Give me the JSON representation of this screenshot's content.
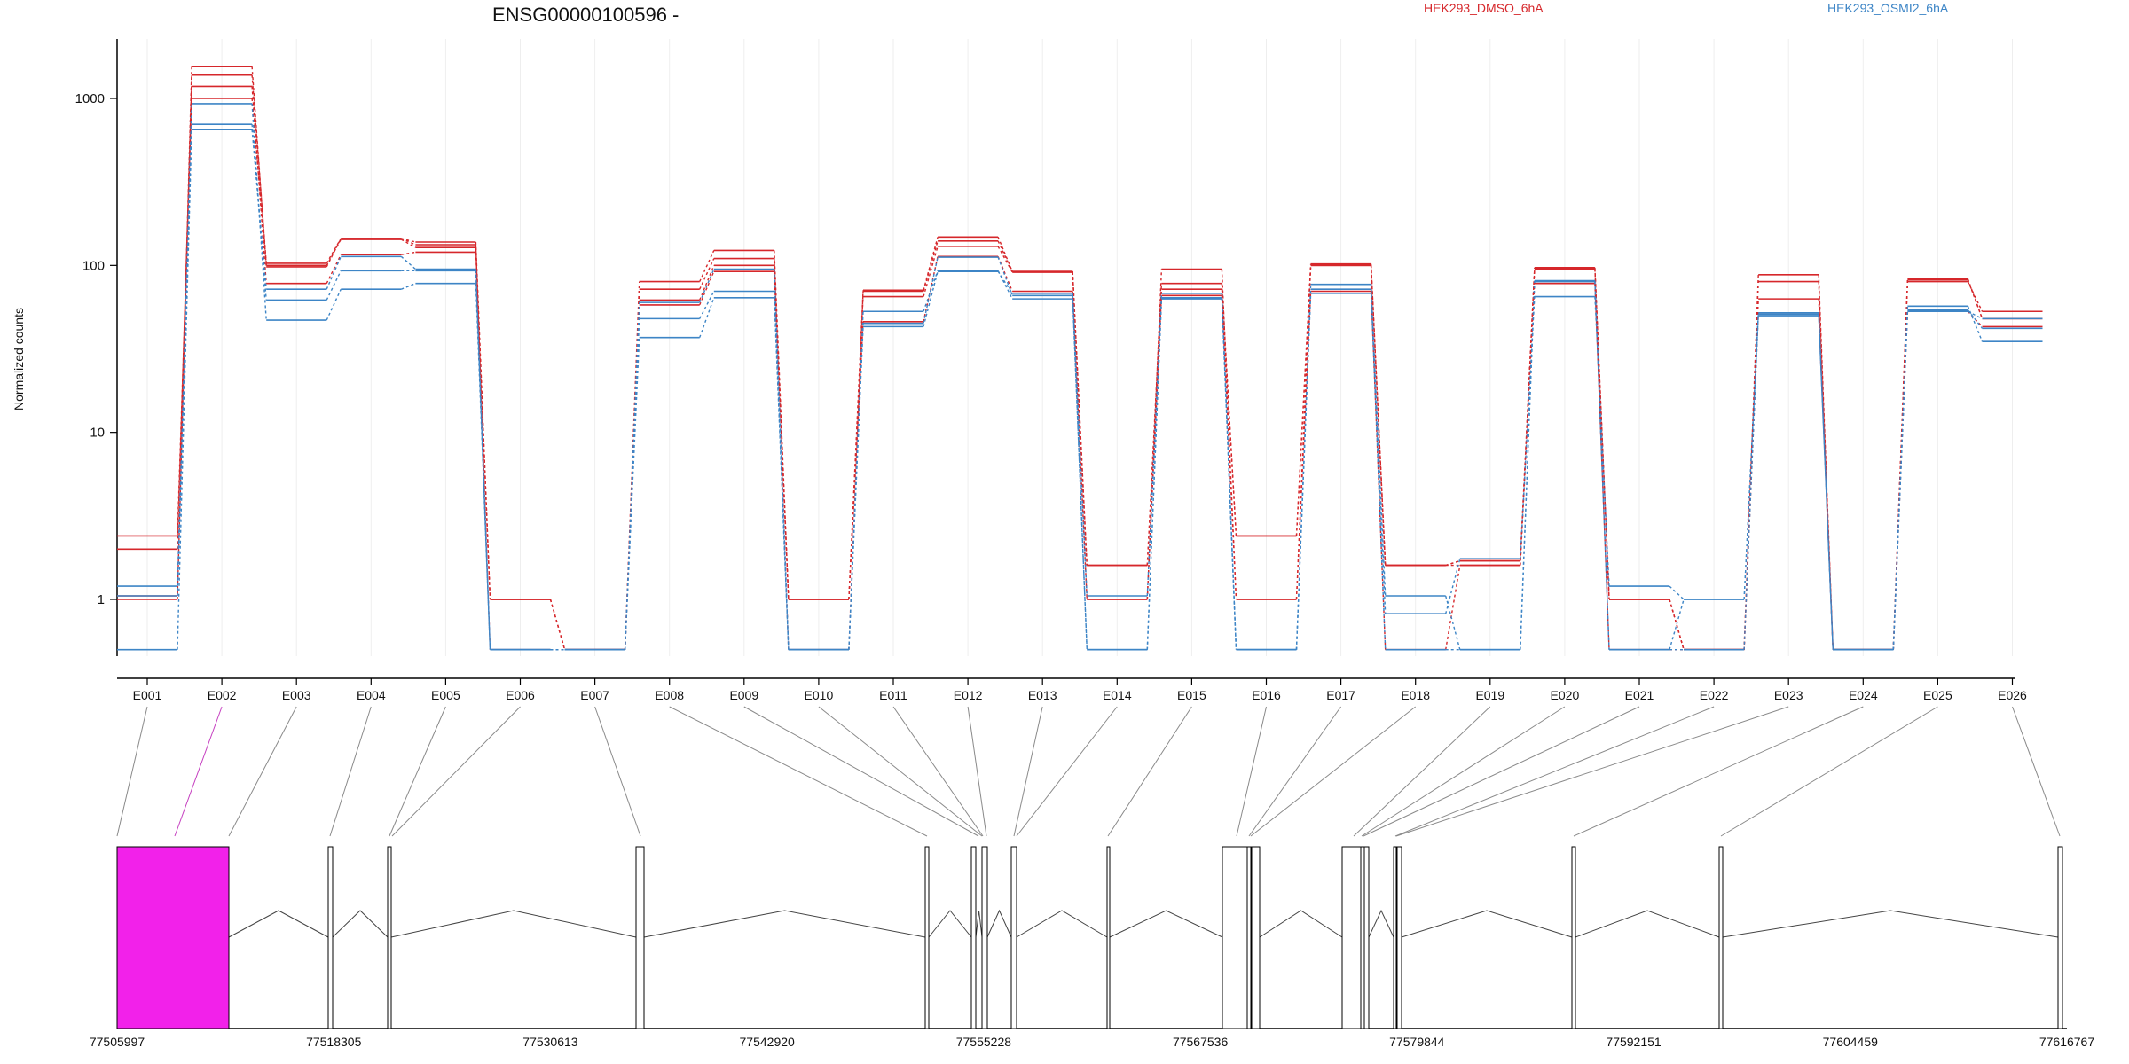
{
  "chart_data": {
    "type": "line",
    "title": "ENSG00000100596 -",
    "ylabel": "Normalized counts",
    "yscale": "log",
    "ylim": [
      0.5,
      2000
    ],
    "yticks": [
      {
        "label": "1",
        "value": 1
      },
      {
        "label": "10",
        "value": 10
      },
      {
        "label": "100",
        "value": 100
      },
      {
        "label": "1000",
        "value": 1000
      }
    ],
    "categories": [
      "E001",
      "E002",
      "E003",
      "E004",
      "E005",
      "E006",
      "E007",
      "E008",
      "E009",
      "E010",
      "E011",
      "E012",
      "E013",
      "E014",
      "E015",
      "E016",
      "E017",
      "E018",
      "E019",
      "E020",
      "E021",
      "E022",
      "E023",
      "E024",
      "E025",
      "E026"
    ],
    "legend": [
      {
        "name": "HEK293_DMSO_6hA",
        "color": "#d6272b"
      },
      {
        "name": "HEK293_OSMI2_6hA",
        "color": "#3d85c6"
      }
    ],
    "series": [
      {
        "group": "HEK293_DMSO_6hA",
        "color": "#d6272b",
        "values": [
          2.4,
          1000,
          100,
          143,
          128,
          1.0,
          0.5,
          58,
          92,
          1.0,
          46,
          113,
          70,
          1.0,
          66,
          1.0,
          70,
          0.5,
          1.6,
          78,
          0.5,
          0.5,
          52,
          0.5,
          53,
          43
        ]
      },
      {
        "group": "HEK293_DMSO_6hA",
        "color": "#d6272b",
        "values": [
          2.0,
          1180,
          78,
          116,
          120,
          1.0,
          0.5,
          62,
          100,
          1.0,
          65,
          130,
          91,
          1.6,
          78,
          2.4,
          100,
          1.6,
          1.6,
          95,
          1.0,
          0.5,
          63,
          0.5,
          80,
          53
        ]
      },
      {
        "group": "HEK293_DMSO_6hA",
        "color": "#d6272b",
        "values": [
          1.0,
          1380,
          103,
          145,
          133,
          0.5,
          0.5,
          72,
          110,
          0.5,
          70,
          140,
          92,
          1.6,
          72,
          2.4,
          102,
          1.6,
          1.7,
          97,
          1.0,
          0.5,
          80,
          0.5,
          82,
          48
        ]
      },
      {
        "group": "HEK293_DMSO_6hA",
        "color": "#d6272b",
        "values": [
          1.05,
          1550,
          98,
          145,
          138,
          1.0,
          0.5,
          80,
          123,
          1.0,
          71,
          148,
          92,
          1.0,
          95,
          1.0,
          100,
          1.6,
          1.7,
          96,
          1.0,
          0.5,
          88,
          0.5,
          83,
          48
        ]
      },
      {
        "group": "HEK293_OSMI2_6hA",
        "color": "#3d85c6",
        "values": [
          1.2,
          930,
          47,
          72,
          78,
          0.5,
          0.5,
          37,
          64,
          0.5,
          53,
          93,
          63,
          0.5,
          63,
          0.5,
          68,
          0.82,
          1.75,
          65,
          1.2,
          1.0,
          50,
          0.5,
          57,
          35
        ]
      },
      {
        "group": "HEK293_OSMI2_6hA",
        "color": "#3d85c6",
        "values": [
          1.05,
          700,
          62,
          93,
          93,
          0.5,
          0.5,
          48,
          70,
          0.5,
          43,
          92,
          68,
          1.05,
          68,
          0.5,
          77,
          1.05,
          0.5,
          81,
          0.5,
          1.0,
          52,
          0.5,
          53,
          48
        ]
      },
      {
        "group": "HEK293_OSMI2_6hA",
        "color": "#3d85c6",
        "values": [
          0.5,
          650,
          72,
          113,
          95,
          0.5,
          0.5,
          60,
          95,
          0.5,
          45,
          112,
          66,
          0.5,
          64,
          0.5,
          72,
          0.5,
          0.5,
          80,
          0.5,
          0.5,
          51,
          0.5,
          54,
          42
        ]
      }
    ],
    "gene_model": {
      "highlighted_exon": "E002",
      "highlight_color": "#f221ea",
      "genomic_ticks": [
        "77505997",
        "77518305",
        "77530613",
        "77542920",
        "77555228",
        "77567536",
        "77579844",
        "77592151",
        "77604459",
        "77616767"
      ]
    }
  }
}
